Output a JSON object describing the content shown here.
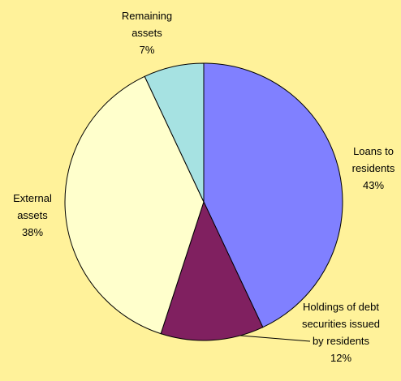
{
  "chart_data": {
    "type": "pie",
    "categories": [
      "Loans to residents",
      "Holdings of debt securities issued by residents",
      "External assets",
      "Remaining assets"
    ],
    "values": [
      43,
      12,
      38,
      7
    ],
    "value_labels": [
      "43%",
      "12%",
      "38%",
      "7%"
    ],
    "colors": [
      "#8080ff",
      "#802060",
      "#ffffcc",
      "#a6e2e2"
    ]
  }
}
